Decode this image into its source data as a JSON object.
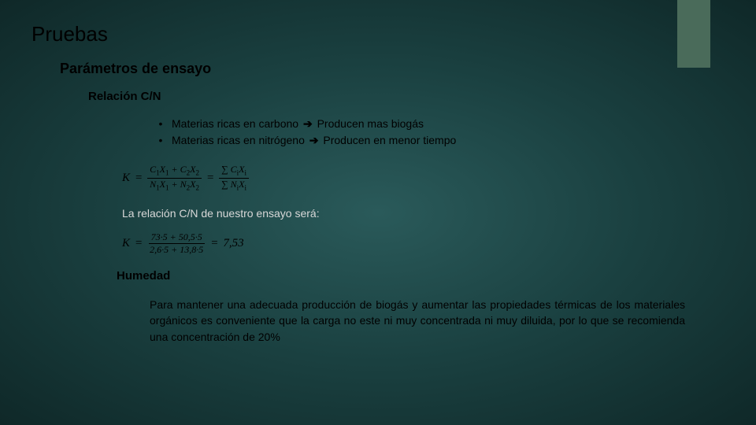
{
  "accent_color": "#4a6b5a",
  "slide": {
    "title": "Pruebas",
    "subtitle": "Parámetros de ensayo",
    "section1": {
      "heading": "Relación C/N",
      "bullets": [
        {
          "before": "Materias ricas en carbono",
          "after": "Producen mas biogás"
        },
        {
          "before": "Materias ricas en nitrógeno",
          "after": "Producen en menor tiempo"
        }
      ],
      "formula1": {
        "K": "K",
        "frac1_num": "C₁X₁ + C₂X₂",
        "frac1_den": "N₁X₁ + N₂X₂",
        "frac2_num": "∑ CᵢXᵢ",
        "frac2_den": "∑ NᵢXᵢ"
      },
      "note": "La relación C/N de nuestro ensayo será:",
      "formula2": {
        "K": "K",
        "num": "73·5 + 50,5·5",
        "den": "2,6·5 + 13,8·5",
        "result": "7,53"
      }
    },
    "section2": {
      "heading": "Humedad",
      "paragraph": "Para mantener una adecuada producción de biogás y aumentar las propiedades térmicas de los materiales orgánicos es conveniente que la carga no este ni muy concentrada ni muy diluida, por lo que se recomienda una concentración de 20%"
    }
  }
}
